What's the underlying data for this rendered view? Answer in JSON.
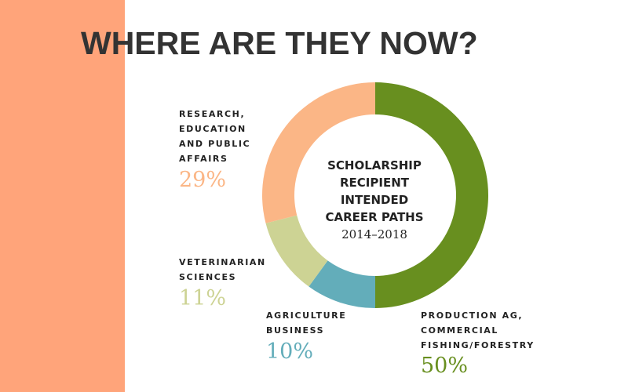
{
  "title": "WHERE ARE THEY NOW?",
  "colors": {
    "sidebar": "#ffa47a",
    "production": "#688f1f",
    "agriculture_business": "#63adba",
    "veterinarian": "#cdd394",
    "research": "#fbb686",
    "title_text": "#333333"
  },
  "chart_data": {
    "type": "pie",
    "donut": true,
    "center_title": [
      "SCHOLARSHIP",
      "RECIPIENT",
      "INTENDED",
      "CAREER PATHS"
    ],
    "center_subtitle": "2014–2018",
    "segments": [
      {
        "label": "PRODUCTION AG,\nCOMMERCIAL\nFISHING/FORESTRY",
        "value": 50,
        "value_label": "50%",
        "color": "#688f1f"
      },
      {
        "label": "AGRICULTURE\nBUSINESS",
        "value": 10,
        "value_label": "10%",
        "color": "#63adba"
      },
      {
        "label": "VETERINARIAN\nSCIENCES",
        "value": 11,
        "value_label": "11%",
        "color": "#cdd394"
      },
      {
        "label": "RESEARCH,\nEDUCATION\nAND PUBLIC\nAFFAIRS",
        "value": 29,
        "value_label": "29%",
        "color": "#fbb686"
      }
    ]
  }
}
